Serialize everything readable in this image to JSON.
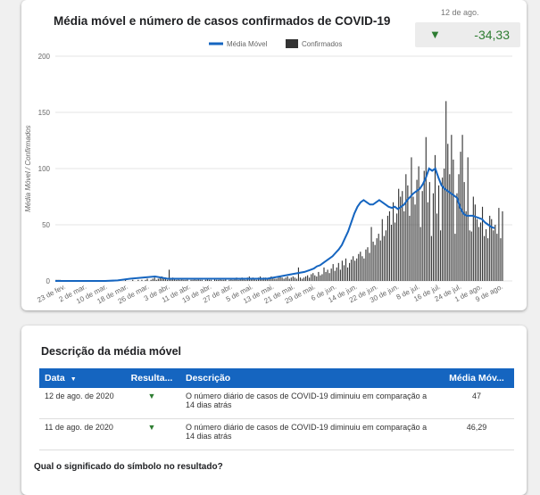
{
  "chart": {
    "title": "Média móvel e número de casos confirmados de COVID-19",
    "legend": {
      "line": "Média Móvel",
      "bars": "Confirmados"
    },
    "ylabel": "Média Móvel / Confirmados"
  },
  "kpi": {
    "date": "12 de ago.",
    "value": "-34,33",
    "icon": "down-triangle-icon",
    "color": "#2e7d32"
  },
  "chart_data": {
    "type": "bar",
    "title": "Média móvel e número de casos confirmados de COVID-19",
    "ylabel": "Média Móvel / Confirmados",
    "ylim": [
      0,
      200
    ],
    "yticks": [
      0,
      50,
      100,
      150,
      200
    ],
    "grid": true,
    "legend_position": "top",
    "x_tick_labels": [
      "23 de fev.",
      "2 de mar.",
      "10 de mar.",
      "18 de mar.",
      "26 de mar.",
      "3 de abr.",
      "11 de abr.",
      "19 de abr.",
      "27 de abr.",
      "5 de mai.",
      "13 de mai.",
      "21 de mai.",
      "29 de mai.",
      "6 de jun.",
      "14 de jun.",
      "22 de jun.",
      "30 de jun.",
      "8 de jul.",
      "16 de jul.",
      "24 de jul.",
      "1 de ago.",
      "9 de ago."
    ],
    "colors": {
      "bars": "#333333",
      "line": "#1565c0"
    },
    "series": [
      {
        "name": "Confirmados",
        "kind": "bar",
        "values": [
          1,
          1,
          1,
          0,
          0,
          0,
          0,
          0,
          0,
          0,
          0,
          0,
          0,
          0,
          0,
          0,
          0,
          0,
          0,
          0,
          0,
          0,
          0,
          0,
          0,
          0,
          0,
          0,
          0,
          0,
          0,
          0,
          0,
          0,
          0,
          0,
          0,
          0,
          1,
          0,
          0,
          0,
          1,
          0,
          0,
          1,
          0,
          1,
          0,
          1,
          2,
          0,
          1,
          2,
          3,
          1,
          2,
          3,
          4,
          2,
          3,
          1,
          10,
          2,
          3,
          2,
          1,
          2,
          1,
          2,
          1,
          1,
          2,
          0,
          1,
          1,
          2,
          1,
          2,
          1,
          1,
          0,
          1,
          2,
          1,
          1,
          0,
          2,
          1,
          1,
          2,
          1,
          1,
          2,
          0,
          1,
          2,
          1,
          2,
          3,
          1,
          2,
          3,
          2,
          1,
          3,
          4,
          2,
          3,
          2,
          1,
          3,
          4,
          2,
          3,
          3,
          2,
          3,
          4,
          3,
          2,
          2,
          3,
          4,
          3,
          2,
          3,
          4,
          2,
          3,
          4,
          3,
          2,
          12,
          3,
          2,
          3,
          4,
          5,
          3,
          6,
          7,
          5,
          4,
          8,
          5,
          6,
          12,
          8,
          10,
          7,
          11,
          15,
          9,
          12,
          16,
          10,
          18,
          14,
          20,
          12,
          16,
          19,
          22,
          18,
          20,
          24,
          26,
          22,
          20,
          28,
          30,
          25,
          48,
          35,
          32,
          38,
          42,
          36,
          55,
          40,
          45,
          58,
          62,
          50,
          70,
          52,
          60,
          82,
          75,
          80,
          62,
          95,
          85,
          58,
          110,
          75,
          68,
          90,
          102,
          48,
          80,
          98,
          128,
          70,
          88,
          40,
          78,
          112,
          60,
          85,
          45,
          92,
          100,
          160,
          122,
          95,
          130,
          108,
          42,
          78,
          95,
          115,
          130,
          88,
          62,
          110,
          45,
          44,
          75,
          68,
          55,
          48,
          52,
          66,
          40,
          46,
          38,
          58,
          55,
          45,
          50,
          42,
          65,
          38,
          62
        ]
      },
      {
        "name": "Média Móvel",
        "kind": "line",
        "points": [
          [
            0,
            0
          ],
          [
            20,
            0
          ],
          [
            40,
            0
          ],
          [
            60,
            0
          ],
          [
            80,
            0
          ],
          [
            100,
            0.5
          ],
          [
            120,
            2
          ],
          [
            140,
            3
          ],
          [
            160,
            4
          ],
          [
            170,
            3
          ],
          [
            180,
            2
          ],
          [
            200,
            2
          ],
          [
            220,
            2
          ],
          [
            240,
            2
          ],
          [
            260,
            2
          ],
          [
            280,
            2
          ],
          [
            300,
            2
          ],
          [
            320,
            2
          ],
          [
            340,
            2
          ],
          [
            360,
            4
          ],
          [
            380,
            6
          ],
          [
            400,
            8
          ],
          [
            410,
            10
          ],
          [
            415,
            11
          ],
          [
            420,
            13
          ],
          [
            425,
            14
          ],
          [
            430,
            16
          ],
          [
            435,
            18
          ],
          [
            440,
            20
          ],
          [
            445,
            22
          ],
          [
            450,
            25
          ],
          [
            455,
            28
          ],
          [
            460,
            32
          ],
          [
            465,
            38
          ],
          [
            470,
            44
          ],
          [
            475,
            52
          ],
          [
            480,
            60
          ],
          [
            485,
            66
          ],
          [
            490,
            70
          ],
          [
            495,
            72
          ],
          [
            500,
            70
          ],
          [
            505,
            68
          ],
          [
            510,
            68
          ],
          [
            515,
            70
          ],
          [
            520,
            72
          ],
          [
            525,
            70
          ],
          [
            530,
            68
          ],
          [
            535,
            66
          ],
          [
            540,
            65
          ],
          [
            545,
            66
          ],
          [
            550,
            64
          ],
          [
            555,
            66
          ],
          [
            560,
            68
          ],
          [
            565,
            72
          ],
          [
            570,
            75
          ],
          [
            575,
            78
          ],
          [
            580,
            80
          ],
          [
            585,
            82
          ],
          [
            590,
            86
          ],
          [
            595,
            92
          ],
          [
            600,
            100
          ],
          [
            605,
            98
          ],
          [
            610,
            100
          ],
          [
            615,
            92
          ],
          [
            620,
            85
          ],
          [
            625,
            82
          ],
          [
            630,
            80
          ],
          [
            635,
            78
          ],
          [
            640,
            76
          ],
          [
            645,
            74
          ],
          [
            650,
            65
          ],
          [
            655,
            60
          ],
          [
            660,
            58
          ],
          [
            665,
            58
          ],
          [
            670,
            58
          ],
          [
            675,
            57
          ],
          [
            680,
            56
          ],
          [
            685,
            55
          ],
          [
            690,
            52
          ],
          [
            695,
            50
          ],
          [
            700,
            48
          ],
          [
            705,
            47
          ]
        ]
      }
    ]
  },
  "description": {
    "title": "Descrição da média móvel",
    "headers": {
      "date": "Data",
      "result": "Resulta...",
      "description": "Descrição",
      "mean": "Média Móv..."
    },
    "sort_icon": "sort-desc-icon",
    "rows": [
      {
        "date": "12 de ago. de 2020",
        "result_icon": "down-triangle-icon",
        "description": "O número diário de casos de COVID-19 diminuiu em comparação a 14 dias atrás",
        "mean": "47"
      },
      {
        "date": "11 de ago. de 2020",
        "result_icon": "down-triangle-icon",
        "description": "O número diário de casos de COVID-19 diminuiu em comparação a 14 dias atrás",
        "mean": "46,29"
      }
    ],
    "question": "Qual o significado do símbolo no resultado?"
  }
}
